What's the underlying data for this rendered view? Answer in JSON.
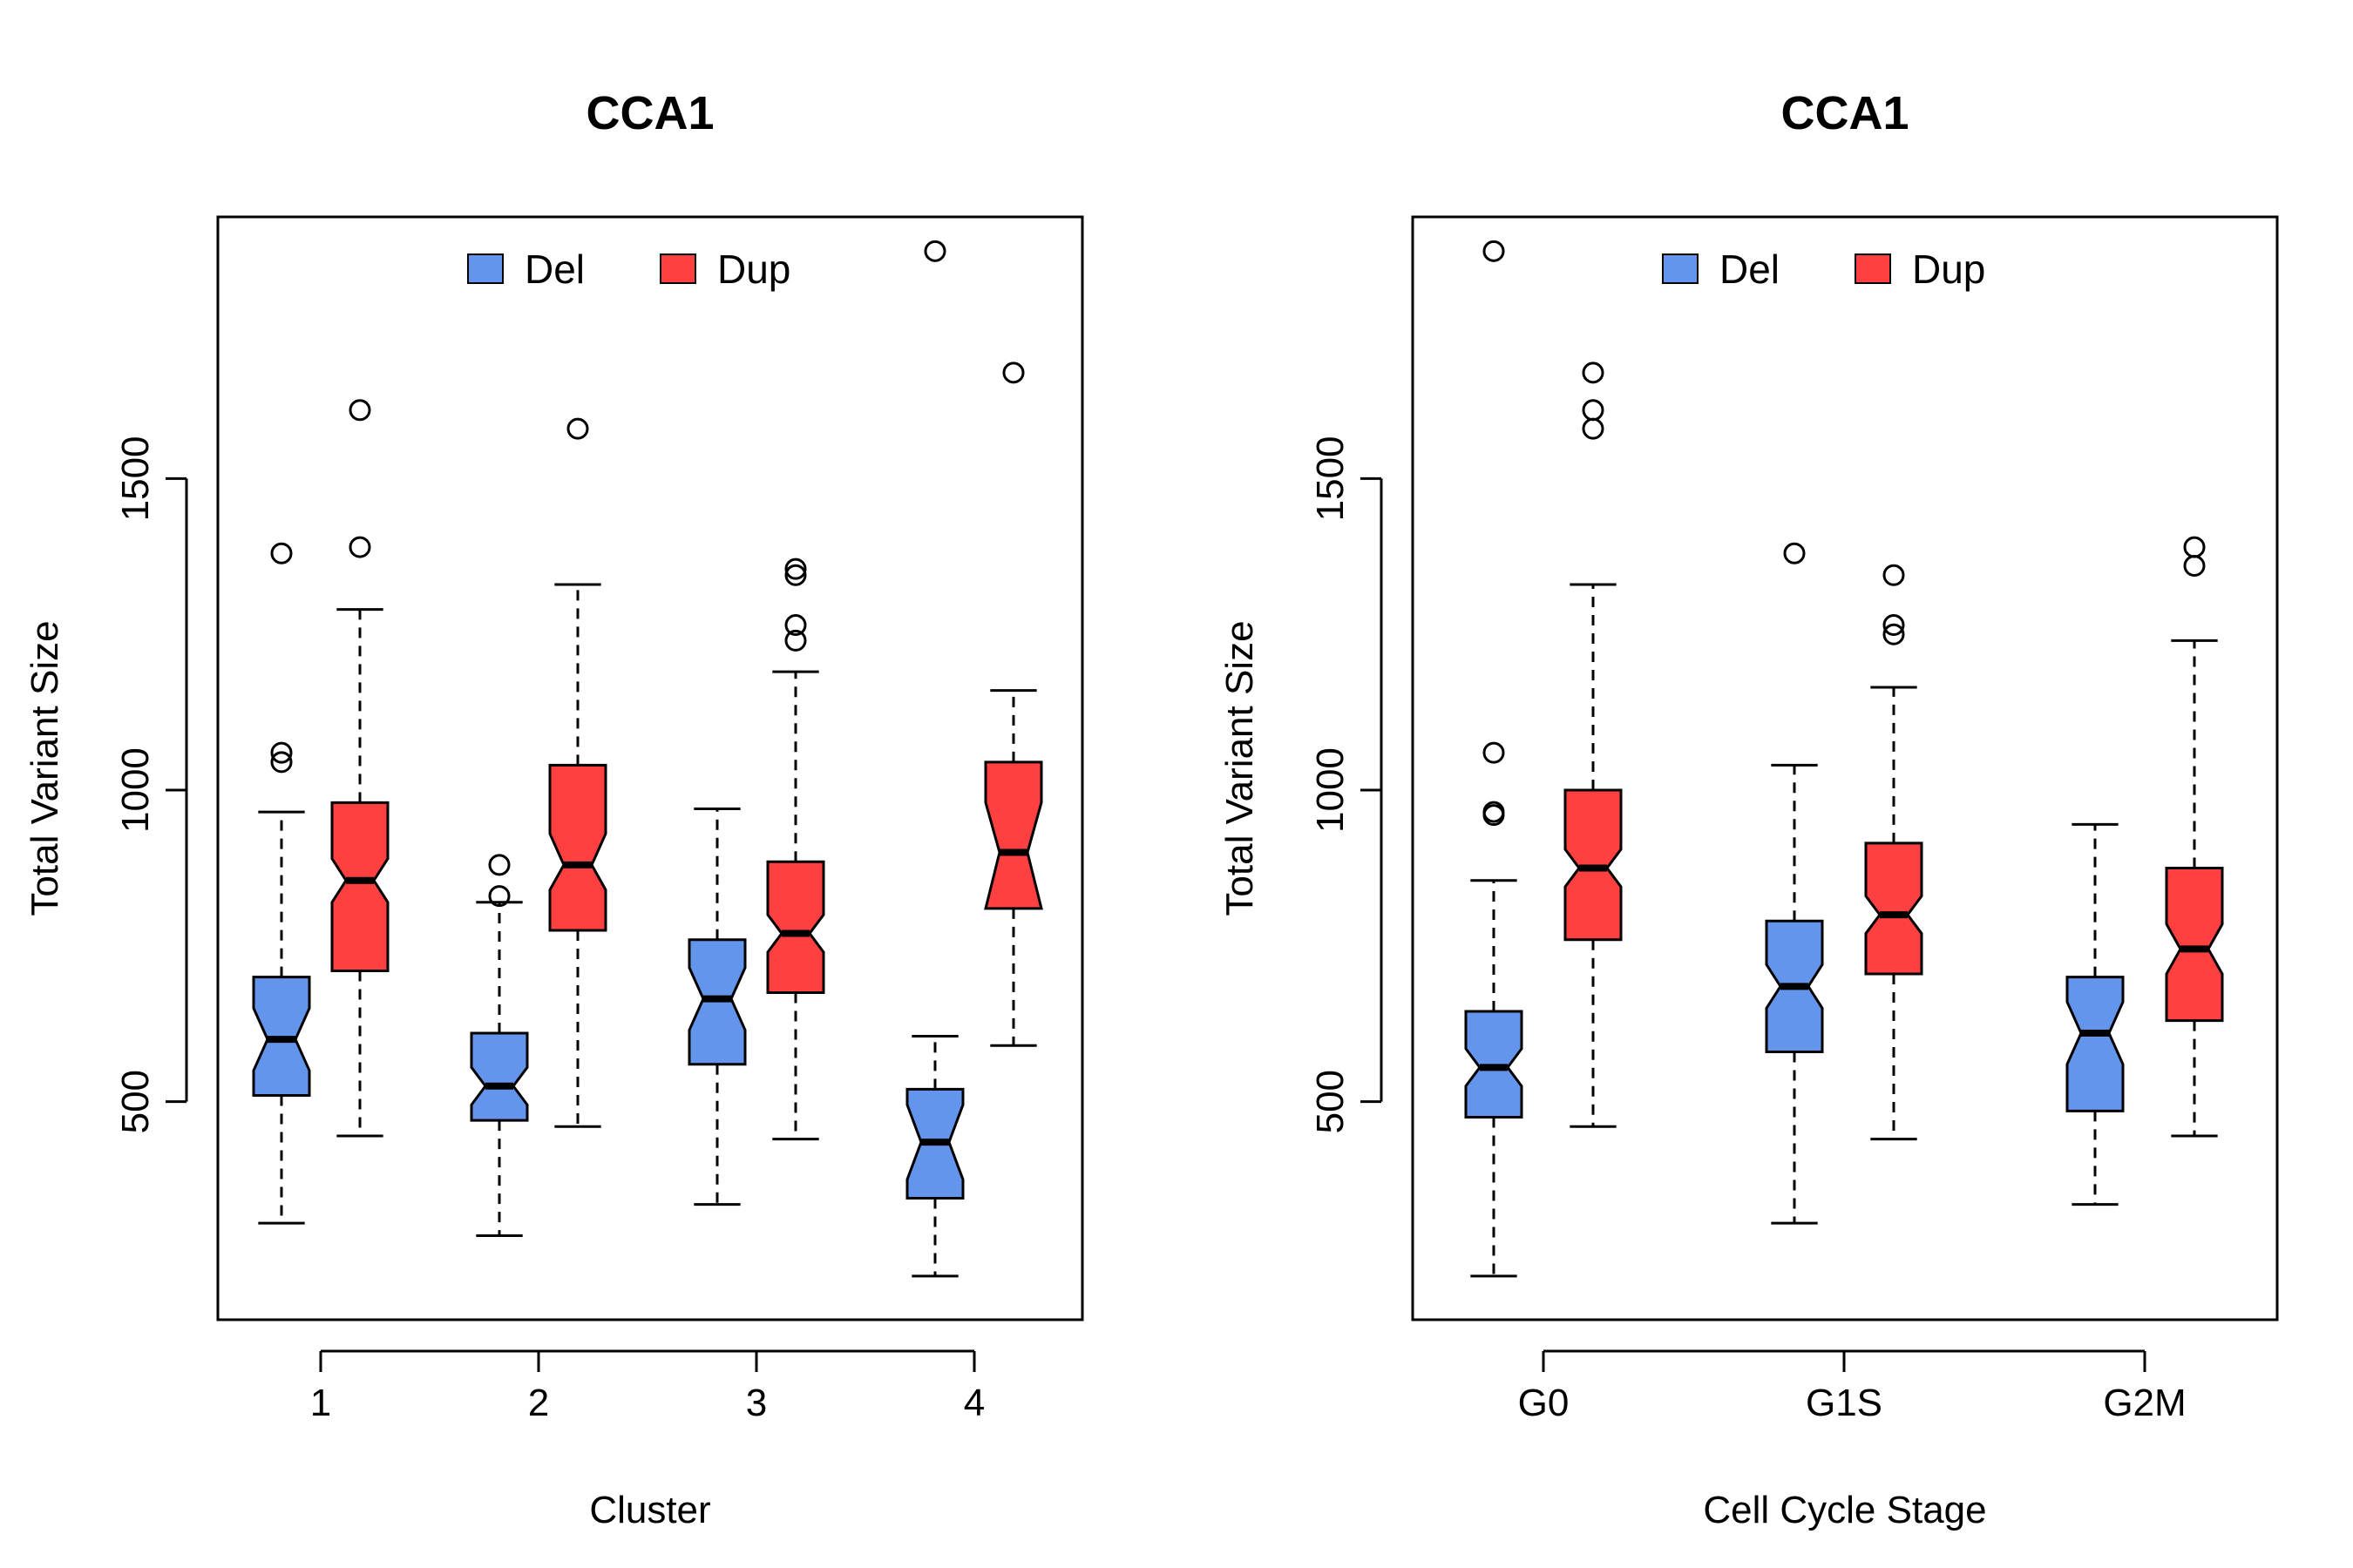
{
  "colors": {
    "del": "#6495ED",
    "dup": "#FF4040",
    "axis": "#000000",
    "background": "#FFFFFF"
  },
  "legend": {
    "items": [
      "Del",
      "Dup"
    ],
    "position": "top-center"
  },
  "chart_data": [
    {
      "type": "boxplot",
      "title": "CCA1",
      "xlabel": "Cluster",
      "ylabel": "Total Variant Size",
      "categories": [
        "1",
        "2",
        "3",
        "4"
      ],
      "yticks": [
        500,
        1000,
        1500
      ],
      "ylim": [
        150,
        1920
      ],
      "notched": true,
      "series": [
        {
          "name": "Del",
          "boxes": [
            {
              "whisker_low": 305,
              "q1": 510,
              "median": 600,
              "q3": 700,
              "whisker_high": 965,
              "notch_low": 550,
              "notch_high": 650,
              "outliers": [
                1045,
                1060,
                1380
              ]
            },
            {
              "whisker_low": 285,
              "q1": 470,
              "median": 525,
              "q3": 610,
              "whisker_high": 820,
              "notch_low": 495,
              "notch_high": 555,
              "outliers": [
                830,
                880
              ]
            },
            {
              "whisker_low": 335,
              "q1": 560,
              "median": 665,
              "q3": 760,
              "whisker_high": 970,
              "notch_low": 615,
              "notch_high": 715,
              "outliers": []
            },
            {
              "whisker_low": 220,
              "q1": 345,
              "median": 435,
              "q3": 520,
              "whisker_high": 605,
              "notch_low": 375,
              "notch_high": 495,
              "outliers": [
                1865
              ]
            }
          ]
        },
        {
          "name": "Dup",
          "boxes": [
            {
              "whisker_low": 445,
              "q1": 710,
              "median": 855,
              "q3": 980,
              "whisker_high": 1290,
              "notch_low": 820,
              "notch_high": 890,
              "outliers": [
                1390,
                1610
              ]
            },
            {
              "whisker_low": 460,
              "q1": 775,
              "median": 880,
              "q3": 1040,
              "whisker_high": 1330,
              "notch_low": 840,
              "notch_high": 930,
              "outliers": [
                1580
              ]
            },
            {
              "whisker_low": 440,
              "q1": 675,
              "median": 770,
              "q3": 885,
              "whisker_high": 1190,
              "notch_low": 740,
              "notch_high": 800,
              "outliers": [
                1240,
                1265,
                1345,
                1355
              ]
            },
            {
              "whisker_low": 590,
              "q1": 810,
              "median": 900,
              "q3": 1045,
              "whisker_high": 1160,
              "notch_low": 810,
              "notch_high": 980,
              "outliers": [
                1670
              ]
            }
          ]
        }
      ]
    },
    {
      "type": "boxplot",
      "title": "CCA1",
      "xlabel": "Cell Cycle Stage",
      "ylabel": "Total Variant Size",
      "categories": [
        "G0",
        "G1S",
        "G2M"
      ],
      "yticks": [
        500,
        1000,
        1500
      ],
      "ylim": [
        150,
        1920
      ],
      "notched": true,
      "series": [
        {
          "name": "Del",
          "boxes": [
            {
              "whisker_low": 220,
              "q1": 475,
              "median": 555,
              "q3": 645,
              "whisker_high": 855,
              "notch_low": 525,
              "notch_high": 585,
              "outliers": [
                960,
                965,
                1060,
                1865
              ]
            },
            {
              "whisker_low": 305,
              "q1": 580,
              "median": 685,
              "q3": 790,
              "whisker_high": 1040,
              "notch_low": 650,
              "notch_high": 720,
              "outliers": [
                1380
              ]
            },
            {
              "whisker_low": 335,
              "q1": 485,
              "median": 610,
              "q3": 700,
              "whisker_high": 945,
              "notch_low": 560,
              "notch_high": 660,
              "outliers": []
            }
          ]
        },
        {
          "name": "Dup",
          "boxes": [
            {
              "whisker_low": 460,
              "q1": 760,
              "median": 875,
              "q3": 1000,
              "whisker_high": 1330,
              "notch_low": 845,
              "notch_high": 905,
              "outliers": [
                1580,
                1610,
                1670
              ]
            },
            {
              "whisker_low": 440,
              "q1": 705,
              "median": 800,
              "q3": 915,
              "whisker_high": 1165,
              "notch_low": 770,
              "notch_high": 830,
              "outliers": [
                1250,
                1265,
                1345
              ]
            },
            {
              "whisker_low": 445,
              "q1": 630,
              "median": 745,
              "q3": 875,
              "whisker_high": 1240,
              "notch_low": 705,
              "notch_high": 785,
              "outliers": [
                1360,
                1390
              ]
            }
          ]
        }
      ]
    }
  ]
}
